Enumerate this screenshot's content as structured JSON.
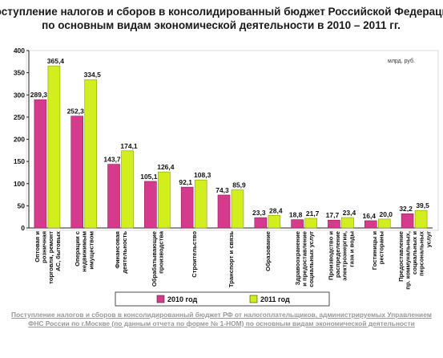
{
  "chart_data": {
    "type": "bar",
    "title_lines": [
      "Поступление налогов и сборов в консолидированный бюджет Российской Федерации",
      "по основным видам экономической деятельности в 2010 – 2011 гг."
    ],
    "unit": "млрд. руб.",
    "ylim": [
      0,
      400
    ],
    "yticks": [
      "0",
      "50",
      "100",
      "150",
      "200",
      "250",
      "300",
      "350",
      "400"
    ],
    "grid": false,
    "legend_position": "bottom",
    "categories": [
      [
        "Оптовая и",
        "розничная",
        "торговля, ремонт",
        "АС, бытовых"
      ],
      [
        "Операции с",
        "недвижимым",
        "имуществом"
      ],
      [
        "Финансовая",
        "деятельность"
      ],
      [
        "Обрабатывающие",
        "производства"
      ],
      [
        "Строительство"
      ],
      [
        "Транспорт и связь"
      ],
      [
        "Образование"
      ],
      [
        "Здравоохранение",
        "и предоставление",
        "социальных услуг"
      ],
      [
        "Производство и",
        "распределение",
        "электроэнергии,",
        "газа и воды"
      ],
      [
        "Гостиницы и",
        "рестораны"
      ],
      [
        "Предоставление",
        "пр. коммунальных,",
        "социальных и",
        "персональных",
        "услуг"
      ]
    ],
    "series": [
      {
        "name": "2010 год",
        "color": "#d63a8c",
        "values": [
          289.3,
          252.3,
          143.7,
          105.1,
          92.1,
          74.3,
          23.3,
          18.8,
          17.7,
          16.4,
          32.2
        ],
        "labels": [
          "289,3",
          "252,3",
          "143,7",
          "105,1",
          "92,1",
          "74,3",
          "23,3",
          "18,8",
          "17,7",
          "16,4",
          "32,2"
        ]
      },
      {
        "name": "2011 год",
        "color": "#d2ee1e",
        "values": [
          365.4,
          334.5,
          174.1,
          126.4,
          108.3,
          85.9,
          28.4,
          21.7,
          23.4,
          20.0,
          39.5
        ],
        "labels": [
          "365,4",
          "334,5",
          "174,1",
          "126,4",
          "108,3",
          "85,9",
          "28,4",
          "21,7",
          "23,4",
          "20,0",
          "39,5"
        ]
      }
    ]
  },
  "caption": "Поступление налогов и сборов в консолидированный бюджет РФ от налогоплательщиков, администрируемых Управлением ФНС России по г.Москве (по данным отчета по форме № 1-НОМ) по основным видам экономической деятельности"
}
